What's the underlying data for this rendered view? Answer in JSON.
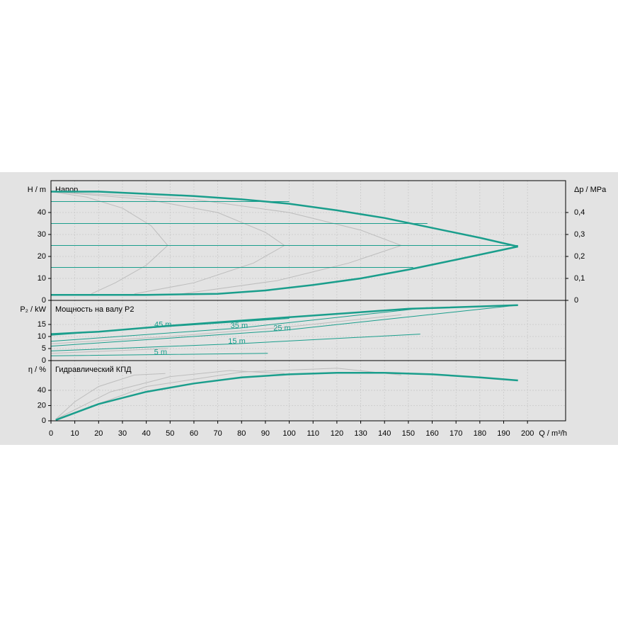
{
  "chart_data": [
    {
      "type": "line",
      "title": "Напор",
      "ylabel": "H / m",
      "y2label": "Δp / MPa",
      "xlim": [
        0,
        216
      ],
      "ylim": [
        0,
        54.5
      ],
      "yticks": [
        0,
        10,
        20,
        30,
        40
      ],
      "y2lim": [
        0,
        0.545
      ],
      "y2ticks": [
        0,
        {
          "value": 0.1,
          "label": "0,1"
        },
        {
          "value": 0.2,
          "label": "0,2"
        },
        {
          "value": 0.3,
          "label": "0,3"
        },
        {
          "value": 0.4,
          "label": "0,4"
        }
      ],
      "grid": true,
      "series": [
        {
          "color": "#bdbdbd",
          "linewidth": 1,
          "x": [
            0,
            15,
            30,
            42,
            49,
            40,
            27,
            17
          ],
          "values": [
            49.5,
            47,
            42,
            34,
            25,
            16,
            8,
            3
          ]
        },
        {
          "color": "#bdbdbd",
          "linewidth": 1,
          "x": [
            0,
            40,
            70,
            90,
            98,
            85,
            60,
            35
          ],
          "values": [
            49.5,
            46,
            40,
            31,
            25,
            17,
            8,
            3
          ]
        },
        {
          "color": "#bdbdbd",
          "linewidth": 1,
          "x": [
            0,
            60,
            100,
            130,
            147,
            125,
            95,
            55
          ],
          "values": [
            49.5,
            46,
            40,
            32,
            25,
            17,
            9,
            3
          ]
        },
        {
          "color": "#1a9e8c",
          "linewidth": 1,
          "x": [
            0,
            100
          ],
          "values": [
            45,
            45
          ]
        },
        {
          "color": "#1a9e8c",
          "linewidth": 1,
          "x": [
            0,
            158
          ],
          "values": [
            35,
            35
          ]
        },
        {
          "color": "#1a9e8c",
          "linewidth": 1,
          "x": [
            0,
            196
          ],
          "values": [
            25,
            25
          ]
        },
        {
          "color": "#1a9e8c",
          "linewidth": 1,
          "x": [
            0,
            152
          ],
          "values": [
            15,
            15
          ]
        },
        {
          "color": "#1a9e8c",
          "linewidth": 2.5,
          "x": [
            0,
            20,
            40,
            60,
            80,
            100,
            120,
            140,
            160,
            180,
            196
          ],
          "values": [
            49.5,
            49.5,
            48.5,
            47.5,
            46,
            44,
            41,
            37.5,
            33,
            28.5,
            24.5
          ]
        },
        {
          "color": "#1a9e8c",
          "linewidth": 2.5,
          "x": [
            0,
            40,
            70,
            90,
            110,
            130,
            150,
            170,
            196
          ],
          "values": [
            2.5,
            2.5,
            3,
            4.5,
            7,
            10,
            14,
            18.5,
            24.5
          ]
        }
      ]
    },
    {
      "type": "line",
      "title": "Мощность на валу P2",
      "ylabel": "P₂ / kW",
      "xlim": [
        0,
        216
      ],
      "ylim": [
        0,
        25
      ],
      "yticks": [
        0,
        5,
        10,
        15
      ],
      "grid": true,
      "series": [
        {
          "color": "#bdbdbd",
          "linewidth": 1,
          "x": [
            0,
            50,
            100,
            147
          ],
          "values": [
            7,
            10,
            14,
            19
          ]
        },
        {
          "color": "#bdbdbd",
          "linewidth": 1,
          "x": [
            0,
            49
          ],
          "values": [
            3,
            5
          ]
        },
        {
          "name": "45 m",
          "color": "#1a9e8c",
          "linewidth": 1,
          "x": [
            0,
            47,
            100
          ],
          "values": [
            10.5,
            14,
            17.5
          ]
        },
        {
          "name": "35 m",
          "color": "#1a9e8c",
          "linewidth": 1,
          "x": [
            0,
            79,
            158
          ],
          "values": [
            8,
            13.5,
            22
          ]
        },
        {
          "name": "25 m",
          "color": "#1a9e8c",
          "linewidth": 1,
          "x": [
            0,
            97,
            196
          ],
          "values": [
            6,
            12.5,
            23
          ]
        },
        {
          "name": "15 m",
          "color": "#1a9e8c",
          "linewidth": 1,
          "x": [
            0,
            78,
            155
          ],
          "values": [
            4,
            7,
            11
          ]
        },
        {
          "name": "5 m",
          "color": "#1a9e8c",
          "linewidth": 1,
          "x": [
            0,
            46,
            91
          ],
          "values": [
            2,
            2.5,
            3
          ]
        },
        {
          "color": "#1a9e8c",
          "linewidth": 2.5,
          "x": [
            0,
            20,
            50,
            100,
            150,
            196
          ],
          "values": [
            11,
            12,
            14.5,
            18,
            21.5,
            23
          ]
        }
      ]
    },
    {
      "type": "line",
      "title": "Гидравлический КПД",
      "ylabel": "η / %",
      "xlabel": "Q / m³/h",
      "xlim": [
        0,
        216
      ],
      "ylim": [
        0,
        79
      ],
      "yticks": [
        0,
        20,
        40
      ],
      "xticks": [
        0,
        10,
        20,
        30,
        40,
        50,
        60,
        70,
        80,
        90,
        100,
        110,
        120,
        130,
        140,
        150,
        160,
        170,
        180,
        190,
        200
      ],
      "grid": true,
      "series": [
        {
          "color": "#bdbdbd",
          "linewidth": 1,
          "x": [
            2,
            10,
            20,
            35,
            48
          ],
          "values": [
            2,
            25,
            45,
            60,
            62
          ]
        },
        {
          "color": "#bdbdbd",
          "linewidth": 1,
          "x": [
            2,
            25,
            50,
            75,
            98
          ],
          "values": [
            2,
            38,
            58,
            66,
            62
          ]
        },
        {
          "color": "#bdbdbd",
          "linewidth": 1,
          "x": [
            2,
            40,
            80,
            120,
            147
          ],
          "values": [
            2,
            45,
            64,
            69,
            60
          ]
        },
        {
          "color": "#1a9e8c",
          "linewidth": 2.5,
          "x": [
            2,
            20,
            40,
            60,
            80,
            100,
            120,
            140,
            160,
            180,
            196
          ],
          "values": [
            1,
            22,
            38,
            49,
            57,
            61,
            63,
            63,
            61,
            57,
            53
          ]
        }
      ]
    }
  ]
}
